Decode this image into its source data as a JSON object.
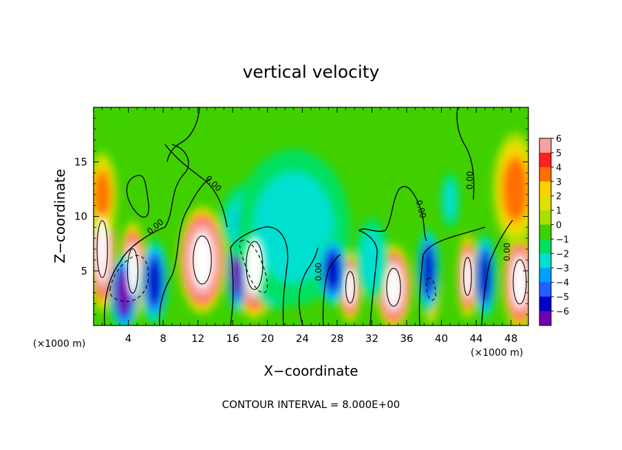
{
  "chart_data": {
    "type": "heatmap",
    "title": "vertical velocity",
    "xlabel": "X−coordinate",
    "ylabel": "Z−coordinate",
    "x_unit_left": "(×1000 m)",
    "x_unit_right": "(×1000 m)",
    "footer": "CONTOUR INTERVAL = 8.000E+00",
    "xlim": [
      0,
      50
    ],
    "ylim": [
      0,
      20
    ],
    "x_ticks": [
      4,
      8,
      12,
      16,
      20,
      24,
      28,
      32,
      36,
      40,
      44,
      48
    ],
    "y_ticks": [
      5,
      10,
      15
    ],
    "colorbar": {
      "min": -6,
      "max": 6,
      "tick_labels": [
        "6",
        "5",
        "4",
        "3",
        "2",
        "1",
        "0",
        "−1",
        "−2",
        "−3",
        "−4",
        "−5",
        "−6"
      ],
      "colors": [
        "#f7a0a0",
        "#ff2020",
        "#ff7000",
        "#ffd000",
        "#e0e000",
        "#a8e000",
        "#40d000",
        "#00e060",
        "#00e0d0",
        "#00a0ff",
        "#2060ff",
        "#0000c8",
        "#7000b0"
      ]
    },
    "contour_labels": [
      "0.00",
      "0.00",
      "0.00",
      "0.00",
      "0.00",
      "0.00",
      "0.00"
    ],
    "blobs": [
      {
        "x": 1.0,
        "z": 7.0,
        "rx": 1.2,
        "rz": 4.5,
        "w": 9
      },
      {
        "x": 4.5,
        "z": 5.0,
        "rx": 1.2,
        "rz": 3.5,
        "w": 9
      },
      {
        "x": 12.5,
        "z": 6.0,
        "rx": 2.1,
        "rz": 3.8,
        "w": 11
      },
      {
        "x": 18.5,
        "z": 5.5,
        "rx": 1.9,
        "rz": 3.8,
        "w": 10
      },
      {
        "x": 29.5,
        "z": 3.5,
        "rx": 1.0,
        "rz": 2.5,
        "w": 8
      },
      {
        "x": 34.5,
        "z": 3.5,
        "rx": 1.6,
        "rz": 3.0,
        "w": 10
      },
      {
        "x": 38.8,
        "z": 4.0,
        "rx": 0.8,
        "rz": 3.0,
        "w": 7
      },
      {
        "x": 43.0,
        "z": 4.5,
        "rx": 0.9,
        "rz": 3.0,
        "w": 8
      },
      {
        "x": 49.0,
        "z": 4.0,
        "rx": 1.5,
        "rz": 3.5,
        "w": 9
      },
      {
        "x": 1.0,
        "z": 12.0,
        "rx": 1.3,
        "rz": 3.0,
        "w": 4
      },
      {
        "x": 48.5,
        "z": 12.5,
        "rx": 2.0,
        "rz": 4.0,
        "w": 4
      },
      {
        "x": 3.5,
        "z": 3.0,
        "rx": 1.3,
        "rz": 2.8,
        "w": -6
      },
      {
        "x": 7.0,
        "z": 4.0,
        "rx": 1.2,
        "rz": 3.0,
        "w": -5
      },
      {
        "x": 16.5,
        "z": 5.0,
        "rx": 0.9,
        "rz": 3.0,
        "w": -6
      },
      {
        "x": 21.0,
        "z": 6.0,
        "rx": 2.5,
        "rz": 3.5,
        "w": -5
      },
      {
        "x": 19.0,
        "z": 9.5,
        "rx": 3.5,
        "rz": 3.0,
        "w": -3
      },
      {
        "x": 23.0,
        "z": 9.0,
        "rx": 5.0,
        "rz": 5.5,
        "w": -2
      },
      {
        "x": 27.5,
        "z": 5.0,
        "rx": 1.3,
        "rz": 2.5,
        "w": -5
      },
      {
        "x": 32.0,
        "z": 6.0,
        "rx": 1.5,
        "rz": 3.0,
        "w": -2
      },
      {
        "x": 38.5,
        "z": 5.0,
        "rx": 1.0,
        "rz": 3.0,
        "w": -5
      },
      {
        "x": 45.0,
        "z": 4.5,
        "rx": 1.0,
        "rz": 3.0,
        "w": -5
      },
      {
        "x": 41.0,
        "z": 11.5,
        "rx": 0.8,
        "rz": 2.0,
        "w": -2
      }
    ]
  }
}
